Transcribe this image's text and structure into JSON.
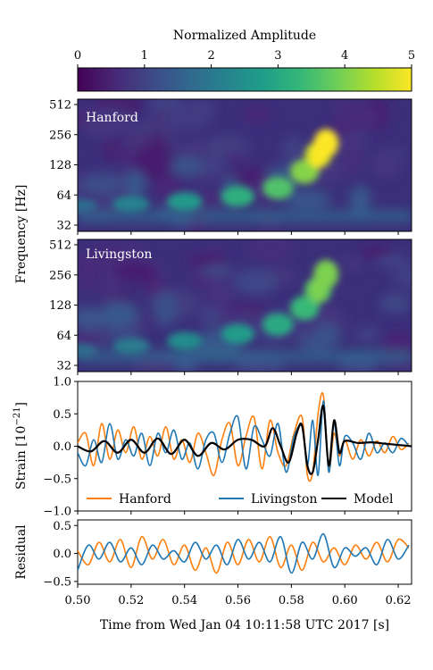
{
  "colorbar": {
    "label": "Normalized Amplitude",
    "range": [
      0,
      5
    ],
    "ticks": [
      "0",
      "1",
      "2",
      "3",
      "4",
      "5"
    ],
    "colormap": [
      "#440154",
      "#482878",
      "#3e4989",
      "#31688e",
      "#26828e",
      "#1f9e89",
      "#35b779",
      "#6ece58",
      "#b5de2b",
      "#fde725"
    ]
  },
  "spectrogram": {
    "ylabel": "Frequency [Hz]",
    "yticks": [
      "32",
      "64",
      "128",
      "256",
      "512"
    ],
    "panels": [
      {
        "label": "Hanford",
        "chirp_peak_amplitude": 5.0
      },
      {
        "label": "Livingston",
        "chirp_peak_amplitude": 4.0
      }
    ]
  },
  "chart_data": [
    {
      "type": "heatmap",
      "title": "Hanford",
      "xlabel": "Time from Wed Jan 04 10:11:58 UTC 2017 [s]",
      "ylabel": "Frequency [Hz]",
      "xlim": [
        0.5,
        0.625
      ],
      "yscale": "log2",
      "ylim": [
        32,
        512
      ],
      "color_range": [
        0,
        5
      ],
      "chirp_track": {
        "t": [
          0.5,
          0.52,
          0.54,
          0.56,
          0.575,
          0.585,
          0.59,
          0.593
        ],
        "f_hz": [
          50,
          52,
          55,
          62,
          75,
          110,
          160,
          210
        ]
      }
    },
    {
      "type": "heatmap",
      "title": "Livingston",
      "xlabel": "Time from Wed Jan 04 10:11:58 UTC 2017 [s]",
      "ylabel": "Frequency [Hz]",
      "xlim": [
        0.5,
        0.625
      ],
      "yscale": "log2",
      "ylim": [
        32,
        512
      ],
      "color_range": [
        0,
        5
      ],
      "chirp_track": {
        "t": [
          0.5,
          0.52,
          0.54,
          0.56,
          0.575,
          0.585,
          0.59,
          0.593
        ],
        "f_hz": [
          45,
          50,
          56,
          66,
          82,
          120,
          180,
          260
        ]
      }
    },
    {
      "type": "line",
      "ylabel": "Strain [10$^{-21}$]",
      "ylabel_text": "Strain [10",
      "ylabel_sup": "−21",
      "ylabel_end": "]",
      "xlim": [
        0.5,
        0.625
      ],
      "ylim": [
        -1.0,
        1.0
      ],
      "yticks": [
        "1.0",
        "0.5",
        "0.0",
        "−0.5",
        "−1.0"
      ],
      "legend_position": "bottom",
      "series": [
        {
          "name": "Hanford",
          "color": "#ff7f0e",
          "x": [
            0.5,
            0.503,
            0.506,
            0.509,
            0.512,
            0.515,
            0.518,
            0.521,
            0.524,
            0.527,
            0.53,
            0.533,
            0.536,
            0.539,
            0.542,
            0.545,
            0.548,
            0.551,
            0.554,
            0.557,
            0.56,
            0.563,
            0.566,
            0.569,
            0.572,
            0.575,
            0.578,
            0.581,
            0.584,
            0.586,
            0.588,
            0.59,
            0.592,
            0.594,
            0.596,
            0.598,
            0.6,
            0.603,
            0.606,
            0.609,
            0.612,
            0.615,
            0.618,
            0.621,
            0.624
          ],
          "y": [
            0.05,
            0.2,
            -0.3,
            0.35,
            -0.2,
            0.25,
            -0.1,
            0.3,
            -0.2,
            0.15,
            -0.15,
            0.3,
            -0.2,
            0.1,
            -0.25,
            0.2,
            -0.1,
            -0.45,
            0.1,
            0.35,
            -0.3,
            0.15,
            0.45,
            -0.35,
            0.4,
            -0.1,
            -0.3,
            0.2,
            0.45,
            -0.45,
            -0.4,
            0.5,
            0.78,
            -0.35,
            0.2,
            -0.15,
            0.1,
            -0.2,
            0.1,
            -0.15,
            0.08,
            -0.1,
            0.15,
            -0.05,
            0.05
          ]
        },
        {
          "name": "Livingston",
          "color": "#1f77b4",
          "x": [
            0.5,
            0.503,
            0.506,
            0.509,
            0.512,
            0.515,
            0.518,
            0.521,
            0.524,
            0.527,
            0.53,
            0.533,
            0.536,
            0.539,
            0.542,
            0.545,
            0.548,
            0.551,
            0.554,
            0.557,
            0.56,
            0.563,
            0.566,
            0.569,
            0.572,
            0.575,
            0.578,
            0.581,
            0.584,
            0.586,
            0.588,
            0.59,
            0.592,
            0.594,
            0.596,
            0.598,
            0.6,
            0.603,
            0.606,
            0.609,
            0.612,
            0.615,
            0.618,
            0.621,
            0.624
          ],
          "y": [
            -0.1,
            -0.3,
            0.1,
            -0.25,
            0.35,
            -0.2,
            0.1,
            -0.15,
            0.2,
            -0.3,
            0.2,
            -0.1,
            0.25,
            -0.2,
            0.05,
            -0.35,
            0.1,
            0.2,
            -0.25,
            0.2,
            0.45,
            -0.35,
            0.3,
            0.1,
            -0.15,
            0.35,
            -0.4,
            0.15,
            0.3,
            -0.3,
            0.4,
            -0.45,
            0.7,
            -0.4,
            0.35,
            -0.3,
            0.15,
            0.05,
            -0.2,
            0.2,
            -0.1,
            0.05,
            -0.1,
            0.12,
            0.0
          ]
        },
        {
          "name": "Model",
          "color": "#000000",
          "x": [
            0.5,
            0.505,
            0.51,
            0.515,
            0.52,
            0.525,
            0.53,
            0.535,
            0.54,
            0.545,
            0.55,
            0.555,
            0.56,
            0.565,
            0.57,
            0.573,
            0.576,
            0.579,
            0.582,
            0.584,
            0.586,
            0.588,
            0.59,
            0.592,
            0.594,
            0.596,
            0.598,
            0.6,
            0.605,
            0.61,
            0.615,
            0.62,
            0.625
          ],
          "y": [
            0.0,
            -0.08,
            0.08,
            -0.1,
            0.1,
            -0.1,
            0.12,
            -0.12,
            0.1,
            -0.15,
            0.05,
            -0.05,
            0.1,
            0.1,
            0.0,
            0.28,
            0.0,
            -0.25,
            0.2,
            0.32,
            -0.3,
            -0.4,
            0.1,
            0.62,
            -0.3,
            0.4,
            -0.1,
            0.08,
            0.05,
            0.06,
            0.04,
            0.02,
            0.0
          ]
        }
      ]
    },
    {
      "type": "line",
      "ylabel": "Residual",
      "xlabel": "Time from Wed Jan 04 10:11:58 UTC 2017 [s]",
      "xlim": [
        0.5,
        0.625
      ],
      "ylim": [
        -0.55,
        0.6
      ],
      "xticks": [
        "0.50",
        "0.52",
        "0.54",
        "0.56",
        "0.58",
        "0.60",
        "0.62"
      ],
      "yticks": [
        "0.5",
        "0.0",
        "−0.5"
      ],
      "series": [
        {
          "name": "Hanford",
          "color": "#ff7f0e",
          "x": [
            0.5,
            0.504,
            0.508,
            0.512,
            0.516,
            0.52,
            0.524,
            0.528,
            0.532,
            0.536,
            0.54,
            0.544,
            0.548,
            0.552,
            0.556,
            0.56,
            0.564,
            0.568,
            0.572,
            0.576,
            0.58,
            0.584,
            0.588,
            0.592,
            0.596,
            0.6,
            0.604,
            0.608,
            0.612,
            0.616,
            0.62,
            0.624
          ],
          "y": [
            0.05,
            -0.2,
            0.2,
            -0.15,
            0.25,
            -0.25,
            0.3,
            -0.1,
            0.25,
            -0.2,
            0.15,
            -0.3,
            0.1,
            -0.35,
            0.2,
            -0.2,
            0.25,
            -0.15,
            0.3,
            -0.25,
            0.15,
            -0.3,
            0.2,
            -0.15,
            0.1,
            -0.2,
            0.15,
            -0.1,
            0.2,
            -0.15,
            0.25,
            0.1
          ]
        },
        {
          "name": "Livingston",
          "color": "#1f77b4",
          "x": [
            0.5,
            0.504,
            0.508,
            0.512,
            0.516,
            0.52,
            0.524,
            0.528,
            0.532,
            0.536,
            0.54,
            0.544,
            0.548,
            0.552,
            0.556,
            0.56,
            0.564,
            0.568,
            0.572,
            0.576,
            0.58,
            0.584,
            0.588,
            0.592,
            0.596,
            0.6,
            0.604,
            0.608,
            0.612,
            0.616,
            0.62,
            0.624
          ],
          "y": [
            -0.3,
            0.15,
            -0.1,
            0.2,
            -0.15,
            0.1,
            -0.2,
            0.15,
            -0.1,
            0.05,
            -0.15,
            0.2,
            -0.1,
            0.15,
            -0.2,
            0.25,
            -0.1,
            0.2,
            -0.15,
            0.3,
            -0.35,
            0.2,
            -0.1,
            0.35,
            -0.25,
            0.1,
            -0.05,
            0.1,
            -0.2,
            0.25,
            -0.1,
            0.15
          ]
        }
      ]
    }
  ]
}
